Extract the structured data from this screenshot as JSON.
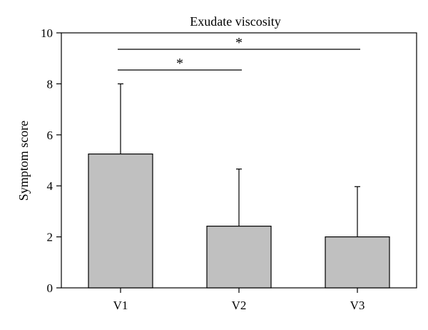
{
  "chart_data": {
    "type": "bar",
    "title": "Exudate viscosity",
    "xlabel": "",
    "ylabel": "Symptom score",
    "categories": [
      "V1",
      "V2",
      "V3"
    ],
    "values": [
      5.25,
      2.42,
      2.0
    ],
    "error_upper": [
      8.0,
      4.66,
      3.97
    ],
    "ylim": [
      0,
      10
    ],
    "yticks": [
      0,
      2,
      4,
      6,
      8,
      10
    ],
    "ytick_labels": [
      "0",
      "2",
      "4",
      "6",
      "8",
      "10"
    ],
    "grid": false,
    "legend": "none",
    "bar_color": "#c0c0c0",
    "significance": [
      {
        "from": "V1",
        "to": "V2",
        "label": "*"
      },
      {
        "from": "V1",
        "to": "V3",
        "label": "*"
      }
    ]
  }
}
